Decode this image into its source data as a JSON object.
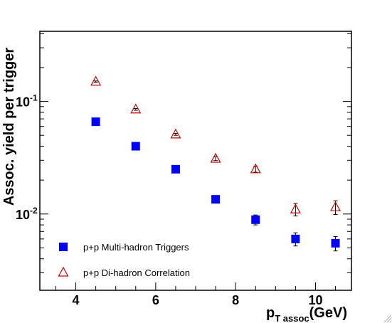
{
  "chart_data": {
    "type": "scatter",
    "xlabel_main": "p",
    "xlabel_sub": "T assoc",
    "xlabel_unit": "(GeV)",
    "ylabel": "Assoc. yield per trigger",
    "xlim": [
      3.1,
      10.9
    ],
    "ylim": [
      0.0021,
      0.42
    ],
    "yscale": "log",
    "grid": false,
    "legend_position": "bottom-left",
    "x_ticks": [
      {
        "value": 4,
        "label": "4"
      },
      {
        "value": 6,
        "label": "6"
      },
      {
        "value": 8,
        "label": "8"
      },
      {
        "value": 10,
        "label": "10"
      }
    ],
    "y_ticks": [
      {
        "value": 0.1,
        "base": "10",
        "exp": "-1"
      },
      {
        "value": 0.01,
        "base": "10",
        "exp": "-2"
      }
    ],
    "series": [
      {
        "name": "p+p Multi-hadron Triggers",
        "marker": "filled-square",
        "color": "#0000ff",
        "x": [
          4.5,
          5.5,
          6.5,
          7.5,
          8.5,
          9.5,
          10.5
        ],
        "y": [
          0.066,
          0.04,
          0.025,
          0.0135,
          0.0089,
          0.006,
          0.0055
        ],
        "yerr": [
          0.002,
          0.0012,
          0.0008,
          0.0009,
          0.0009,
          0.0008,
          0.0008
        ]
      },
      {
        "name": "p+p Di-hadron Correlation",
        "marker": "open-triangle",
        "color": "#cc0000",
        "x": [
          4.5,
          5.5,
          6.5,
          7.5,
          8.5,
          9.5,
          10.5
        ],
        "y": [
          0.15,
          0.085,
          0.051,
          0.031,
          0.025,
          0.011,
          0.0115
        ],
        "yerr": [
          0.002,
          0.0015,
          0.001,
          0.0012,
          0.0015,
          0.0014,
          0.0016
        ]
      }
    ]
  }
}
